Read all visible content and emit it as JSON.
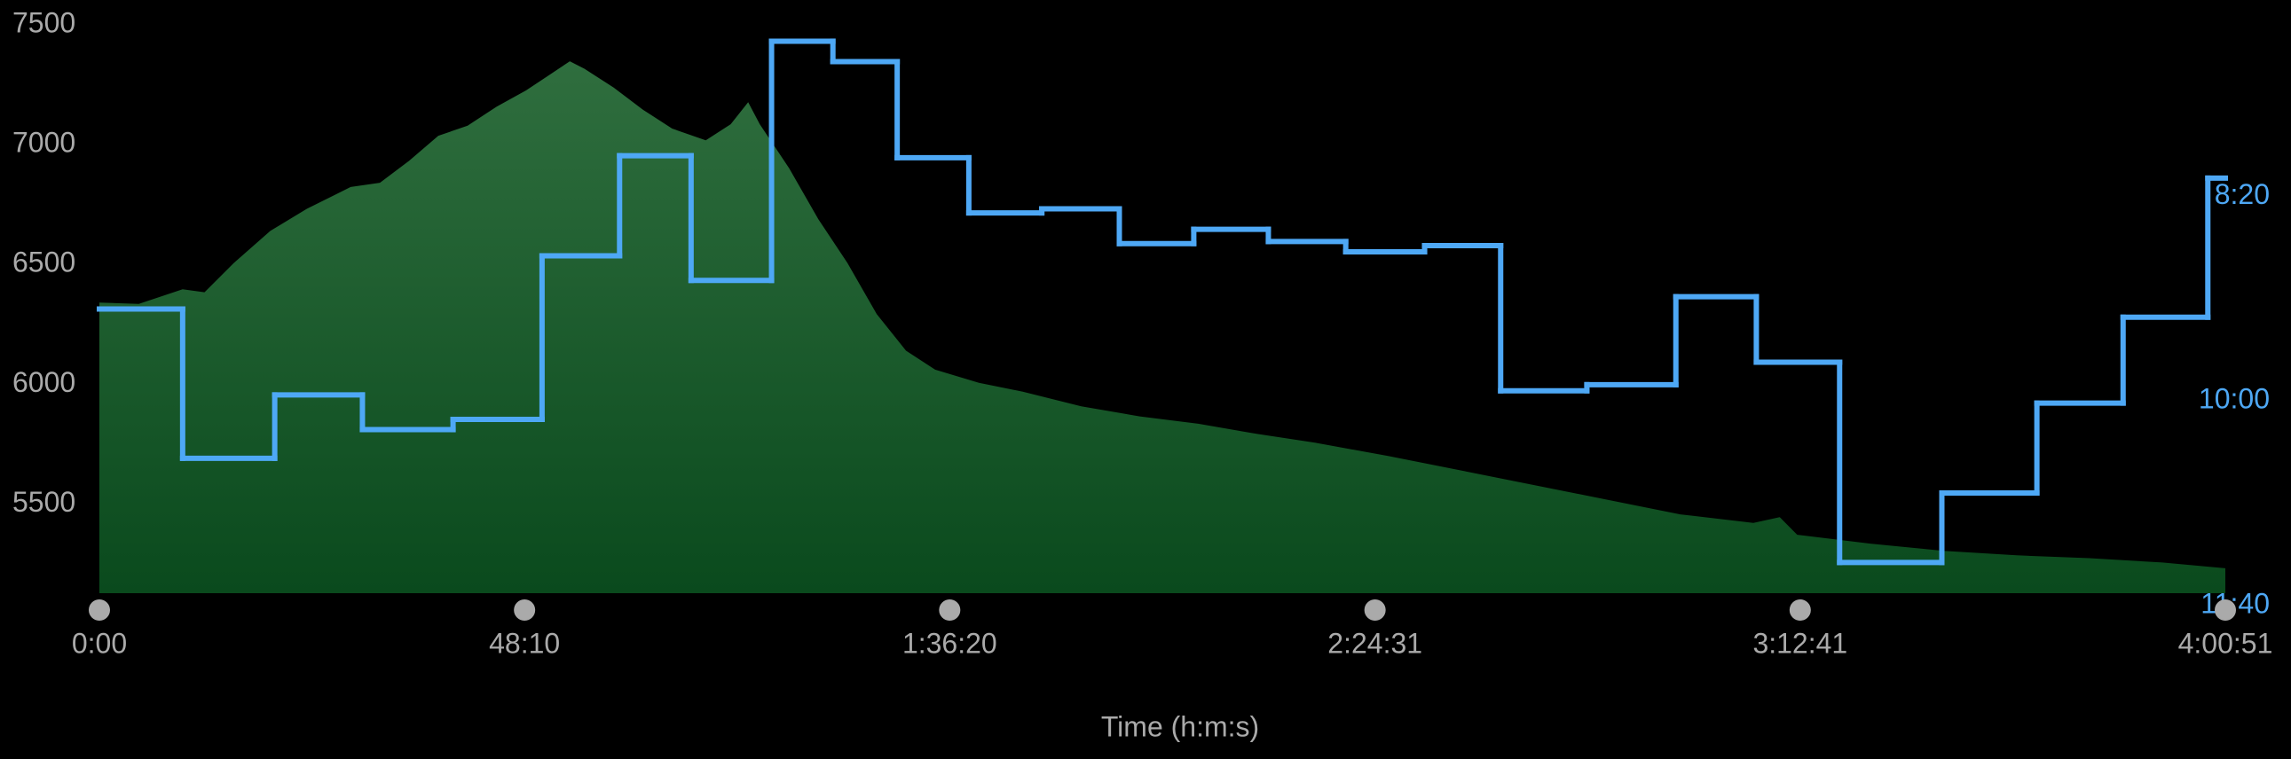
{
  "chart_data": {
    "type": "combo",
    "x_label": "Time (h:m:s)",
    "xlim": [
      0,
      14451
    ],
    "xticks": [
      {
        "value": 0,
        "label": "0:00"
      },
      {
        "value": 2890,
        "label": "48:10"
      },
      {
        "value": 5780,
        "label": "1:36:20"
      },
      {
        "value": 8671,
        "label": "2:24:31"
      },
      {
        "value": 11561,
        "label": "3:12:41"
      },
      {
        "value": 14451,
        "label": "4:00:51"
      }
    ],
    "ylim": [
      5128,
      7500
    ],
    "yticks": [
      5500,
      6000,
      6500,
      7000,
      7500
    ],
    "y2lim": [
      694,
      416
    ],
    "y2ticks": [
      {
        "value": 500,
        "label": "8:20"
      },
      {
        "value": 600,
        "label": "10:00"
      },
      {
        "value": 700,
        "label": "11:40"
      }
    ],
    "series": [
      {
        "type": "area",
        "color": "#2f6e3e",
        "color_bottom": "#0a4a1d",
        "x": [
          0,
          268,
          566,
          715,
          914,
          1162,
          1410,
          1708,
          1907,
          2106,
          2304,
          2503,
          2701,
          2900,
          3049,
          3198,
          3297,
          3496,
          3695,
          3893,
          4122,
          4291,
          4410,
          4489,
          4688,
          4887,
          5085,
          5284,
          5483,
          5681,
          5979,
          6277,
          6674,
          7072,
          7469,
          7866,
          8263,
          8760,
          9257,
          9753,
          10250,
          10746,
          11243,
          11422,
          11541,
          12038,
          12534,
          13031,
          13527,
          14024,
          14451
        ],
        "values": [
          6341,
          6335,
          6396,
          6384,
          6506,
          6640,
          6732,
          6823,
          6841,
          6933,
          7037,
          7079,
          7159,
          7226,
          7287,
          7348,
          7317,
          7238,
          7146,
          7067,
          7018,
          7085,
          7177,
          7085,
          6902,
          6689,
          6506,
          6293,
          6140,
          6061,
          6006,
          5969,
          5908,
          5866,
          5835,
          5793,
          5756,
          5701,
          5640,
          5579,
          5518,
          5457,
          5421,
          5445,
          5372,
          5335,
          5305,
          5286,
          5274,
          5256,
          5232
        ]
      },
      {
        "type": "step",
        "axis": "y2",
        "color": "#4ea8f5",
        "x": [
          0,
          566,
          1192,
          1788,
          2404,
          3009,
          3536,
          4022,
          4569,
          4986,
          5423,
          5910,
          6406,
          6933,
          7439,
          7946,
          8472,
          9008,
          9525,
          10111,
          10716,
          11263,
          11829,
          12524,
          13170,
          13756,
          14332
        ],
        "values": [
          555,
          628,
          597,
          614,
          609,
          529,
          480,
          541,
          424,
          434,
          481,
          508,
          506,
          523,
          516,
          522,
          527,
          524,
          595,
          592,
          549,
          581,
          679,
          645,
          601,
          559,
          491
        ]
      }
    ]
  }
}
